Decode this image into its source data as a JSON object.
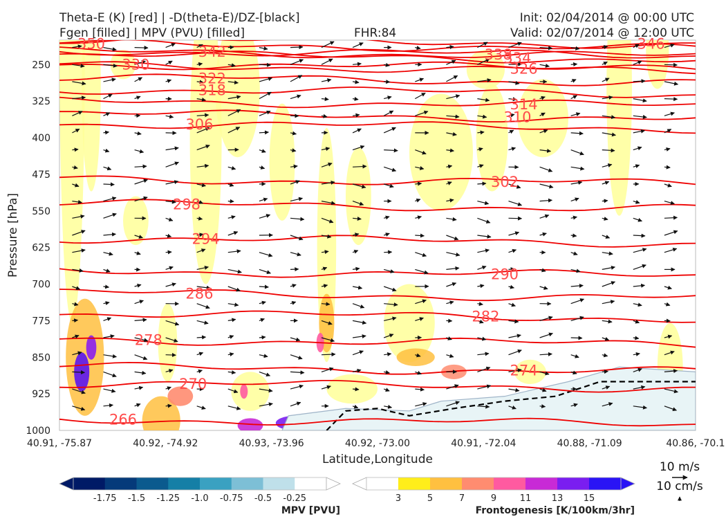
{
  "header": {
    "title_left_1": "Theta-E (K) [red] | -D(theta-E)/DZ-[black]",
    "title_left_2": "Fgen [filled] | MPV (PVU) [filled]",
    "fhr": "FHR:84",
    "init": "Init: 02/04/2014 @ 00:00 UTC",
    "valid": "Valid: 02/07/2014 @ 12:00 UTC"
  },
  "chart_data": {
    "type": "cross-section",
    "xlabel": "Latitude,Longitude",
    "ylabel": "Pressure [hPa]",
    "x_ticks": [
      "40.91, -75.87",
      "40.92, -74.92",
      "40.93, -73.96",
      "40.92, -73.00",
      "40.91, -72.04",
      "40.88, -71.09",
      "40.86, -70.1"
    ],
    "y_ticks": [
      250,
      325,
      400,
      475,
      550,
      625,
      700,
      775,
      850,
      925,
      1000
    ],
    "ylim": [
      1000,
      200
    ],
    "y_scale": "linear, inverted",
    "theta_e_contours": {
      "color": "#ee0000",
      "levels": [
        266,
        270,
        274,
        278,
        282,
        286,
        290,
        294,
        298,
        302,
        306,
        310,
        314,
        318,
        322,
        326,
        330,
        334,
        338,
        342,
        346,
        350
      ],
      "labels": [
        {
          "text": "266",
          "x": 0.1,
          "p": 978
        },
        {
          "text": "270",
          "x": 0.21,
          "p": 905
        },
        {
          "text": "274",
          "x": 0.73,
          "p": 877
        },
        {
          "text": "278",
          "x": 0.14,
          "p": 815
        },
        {
          "text": "282",
          "x": 0.67,
          "p": 767
        },
        {
          "text": "286",
          "x": 0.22,
          "p": 720
        },
        {
          "text": "290",
          "x": 0.7,
          "p": 680
        },
        {
          "text": "294",
          "x": 0.23,
          "p": 608
        },
        {
          "text": "298",
          "x": 0.2,
          "p": 537
        },
        {
          "text": "302",
          "x": 0.7,
          "p": 491
        },
        {
          "text": "306",
          "x": 0.22,
          "p": 373
        },
        {
          "text": "310",
          "x": 0.72,
          "p": 358
        },
        {
          "text": "314",
          "x": 0.73,
          "p": 332
        },
        {
          "text": "318",
          "x": 0.24,
          "p": 303
        },
        {
          "text": "322",
          "x": 0.24,
          "p": 279
        },
        {
          "text": "326",
          "x": 0.73,
          "p": 259
        },
        {
          "text": "330",
          "x": 0.12,
          "p": 250
        },
        {
          "text": "334",
          "x": 0.72,
          "p": 237
        },
        {
          "text": "338",
          "x": 0.69,
          "p": 230
        },
        {
          "text": "342",
          "x": 0.24,
          "p": 224
        },
        {
          "text": "346",
          "x": 0.93,
          "p": 208
        },
        {
          "text": "350",
          "x": 0.05,
          "p": 208
        }
      ]
    },
    "wind_vectors": {
      "reference": "10 m/s",
      "color": "#111111"
    },
    "mpv_colorbar": {
      "label": "MPV [PVU]",
      "ticks": [
        "-1.75",
        "-1.5",
        "-1.25",
        "-1.0",
        "-0.75",
        "-0.5",
        "-0.25"
      ],
      "colors": [
        "#001a66",
        "#053a7a",
        "#0b5a8e",
        "#157fa6",
        "#3aa1c1",
        "#7dbfd6",
        "#bfe0ea",
        "#ffffff"
      ]
    },
    "fgen_colorbar": {
      "label": "Frontogenesis [K/100km/3hr]",
      "ticks": [
        "3",
        "5",
        "7",
        "9",
        "11",
        "13",
        "15"
      ],
      "colors": [
        "#ffffff",
        "#ffee1a",
        "#ffc040",
        "#ff8c70",
        "#ff5aa0",
        "#c82ad6",
        "#7a1ef0",
        "#2a14f5"
      ]
    },
    "vertical_velocity_ref": "10 cm/s"
  }
}
